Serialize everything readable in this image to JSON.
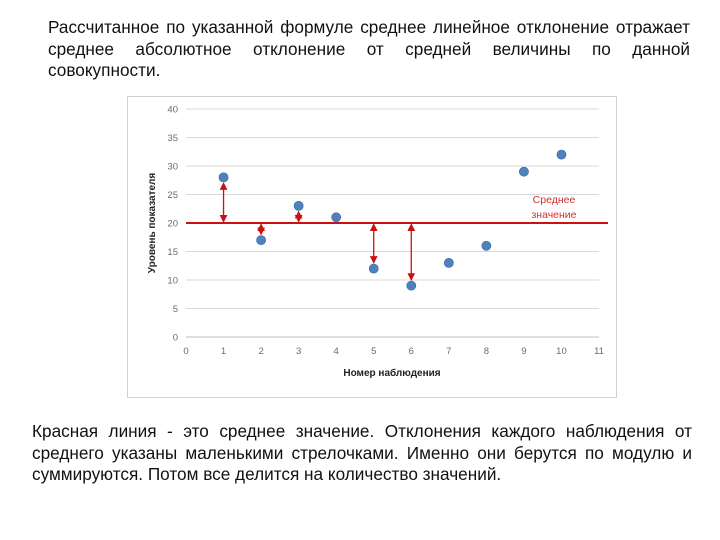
{
  "text": {
    "top_paragraph": "Рассчитанное по указанной формуле среднее линейное отклонение отражает среднее абсолютное отклонение от средней величины по данной совокупности.",
    "bottom_paragraph": "Красная линия - это среднее значение. Отклонения каждого наблюдения от среднего указаны маленькими стрелочками. Именно они берутся по модулю и суммируются. Потом все делится на количество значений."
  },
  "colors": {
    "point": "#4f81bd",
    "mean_line": "#cc1111",
    "arrow": "#cc1111",
    "grid": "#d9d9d9",
    "annotation": "#d03030"
  },
  "chart_data": {
    "type": "scatter",
    "title": "",
    "xlabel": "Номер наблюдения",
    "ylabel": "Уровень показателя",
    "xlim": [
      0,
      11
    ],
    "ylim": [
      0,
      40
    ],
    "x_ticks": [
      "0",
      "1",
      "2",
      "3",
      "4",
      "5",
      "6",
      "7",
      "8",
      "9",
      "10",
      "11"
    ],
    "y_ticks": [
      "0",
      "5",
      "10",
      "15",
      "20",
      "25",
      "30",
      "35",
      "40"
    ],
    "grid": "horizontal",
    "x": [
      1,
      2,
      3,
      4,
      5,
      6,
      7,
      8,
      9,
      10
    ],
    "y": [
      28,
      17,
      23,
      21,
      12,
      9,
      13,
      16,
      29,
      32
    ],
    "mean_value": 20,
    "annotation": "Среднее значение",
    "deviation_arrows_at": [
      1,
      2,
      3,
      5,
      6
    ]
  }
}
